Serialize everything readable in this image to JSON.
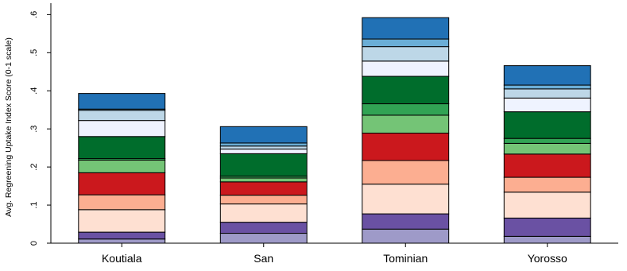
{
  "chart_data": {
    "type": "bar",
    "stacked": true,
    "ylabel": "Avg. Regreening Uptake Index Score (0-1 scale)",
    "xlabel": "",
    "ylim": [
      0,
      0.63
    ],
    "yticks": [
      {
        "value": 0,
        "label": "0"
      },
      {
        "value": 0.1,
        "label": ".1"
      },
      {
        "value": 0.2,
        "label": ".2"
      },
      {
        "value": 0.3,
        "label": ".3"
      },
      {
        "value": 0.4,
        "label": ".4"
      },
      {
        "value": 0.5,
        "label": ".5"
      },
      {
        "value": 0.6,
        "label": ".6"
      }
    ],
    "grid": false,
    "legend": "none",
    "categories": [
      "Koutiala",
      "San",
      "Tominian",
      "Yorosso"
    ],
    "series": [
      {
        "color": "#9e9ac8",
        "values": [
          0.011,
          0.026,
          0.037,
          0.018
        ]
      },
      {
        "color": "#6a51a3",
        "values": [
          0.018,
          0.029,
          0.04,
          0.048
        ]
      },
      {
        "color": "#fee0d2",
        "values": [
          0.059,
          0.048,
          0.078,
          0.068
        ]
      },
      {
        "color": "#fcae91",
        "values": [
          0.039,
          0.023,
          0.062,
          0.039
        ]
      },
      {
        "color": "#cb181d",
        "values": [
          0.058,
          0.035,
          0.072,
          0.061
        ]
      },
      {
        "color": "#74c476",
        "values": [
          0.033,
          0.01,
          0.047,
          0.028
        ]
      },
      {
        "color": "#31a354",
        "values": [
          0.004,
          0.005,
          0.03,
          0.013
        ]
      },
      {
        "color": "#006d2c",
        "values": [
          0.058,
          0.059,
          0.072,
          0.07
        ]
      },
      {
        "color": "#eff3ff",
        "values": [
          0.042,
          0.012,
          0.04,
          0.036
        ]
      },
      {
        "color": "#bdd7e7",
        "values": [
          0.027,
          0.008,
          0.038,
          0.024
        ]
      },
      {
        "color": "#6baed6",
        "values": [
          0.003,
          0.008,
          0.02,
          0.01
        ]
      },
      {
        "color": "#2171b5",
        "values": [
          0.041,
          0.043,
          0.056,
          0.051
        ]
      }
    ]
  }
}
